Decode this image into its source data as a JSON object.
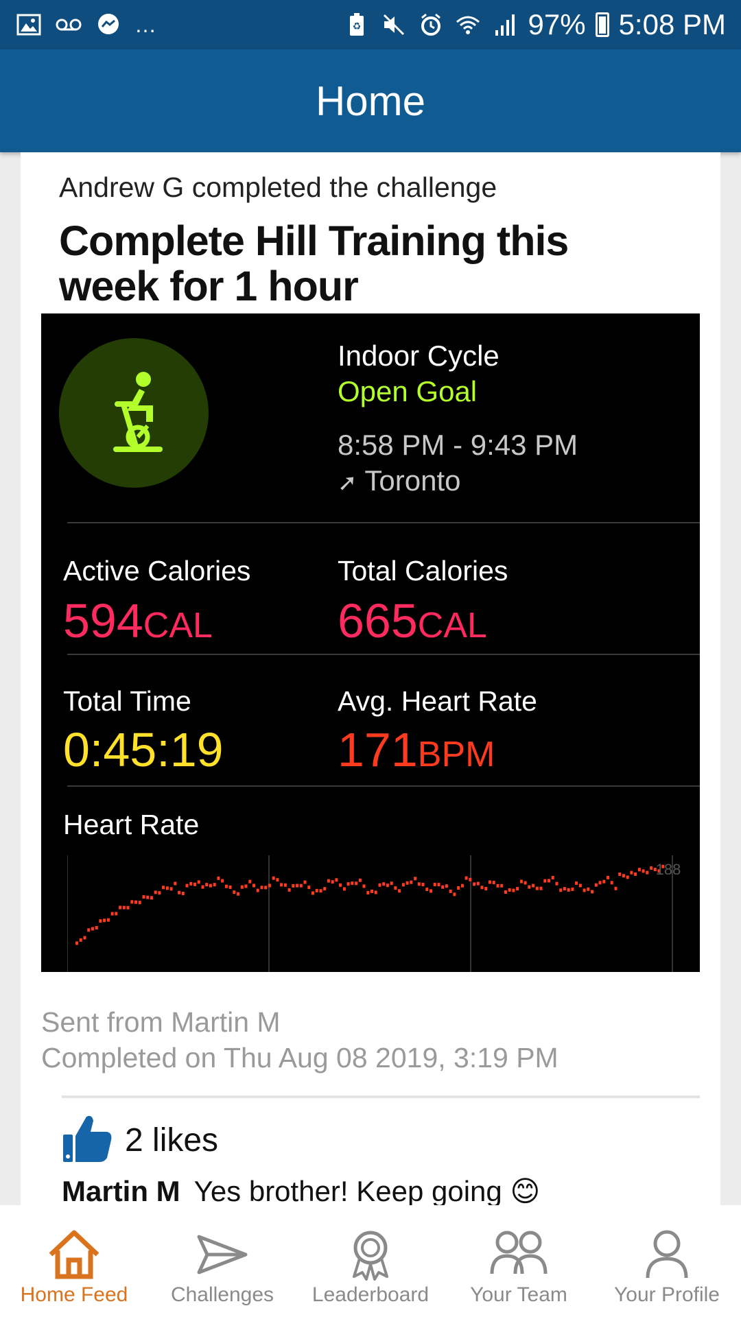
{
  "status_bar": {
    "battery": "97%",
    "time": "5:08 PM",
    "more": "…"
  },
  "app_bar": {
    "title": "Home"
  },
  "post": {
    "meta": "Andrew G completed the challenge",
    "title": "Complete Hill Training this week for 1 hour",
    "workout": {
      "type": "Indoor Cycle",
      "goal": "Open Goal",
      "time_range": "8:58 PM - 9:43 PM",
      "location": "Toronto",
      "active_calories_label": "Active Calories",
      "active_calories_value": "594",
      "active_calories_unit": "CAL",
      "total_calories_label": "Total Calories",
      "total_calories_value": "665",
      "total_calories_unit": "CAL",
      "total_time_label": "Total Time",
      "total_time_value": "0:45:19",
      "avg_hr_label": "Avg. Heart Rate",
      "avg_hr_value": "171",
      "avg_hr_unit": "BPM",
      "heart_rate_label": "Heart Rate",
      "heart_rate_max_label": "188",
      "colors": {
        "goal": "#b3ff2c",
        "calories": "#ff2a5e",
        "time": "#ffe02a",
        "heart": "#ff3b1f"
      }
    },
    "sent_from": "Sent from Martin M",
    "completed_on": "Completed on Thu Aug 08 2019, 3:19 PM",
    "likes": "2 likes",
    "comment": {
      "author": "Martin M",
      "text": "Yes brother! Keep going 😊"
    }
  },
  "nav": {
    "items": [
      {
        "label": "Home Feed",
        "icon": "home-icon",
        "active": true
      },
      {
        "label": "Challenges",
        "icon": "paper-plane-icon",
        "active": false
      },
      {
        "label": "Leaderboard",
        "icon": "award-icon",
        "active": false
      },
      {
        "label": "Your Team",
        "icon": "team-icon",
        "active": false
      },
      {
        "label": "Your Profile",
        "icon": "profile-icon",
        "active": false
      }
    ],
    "active_color": "#d9731d"
  }
}
